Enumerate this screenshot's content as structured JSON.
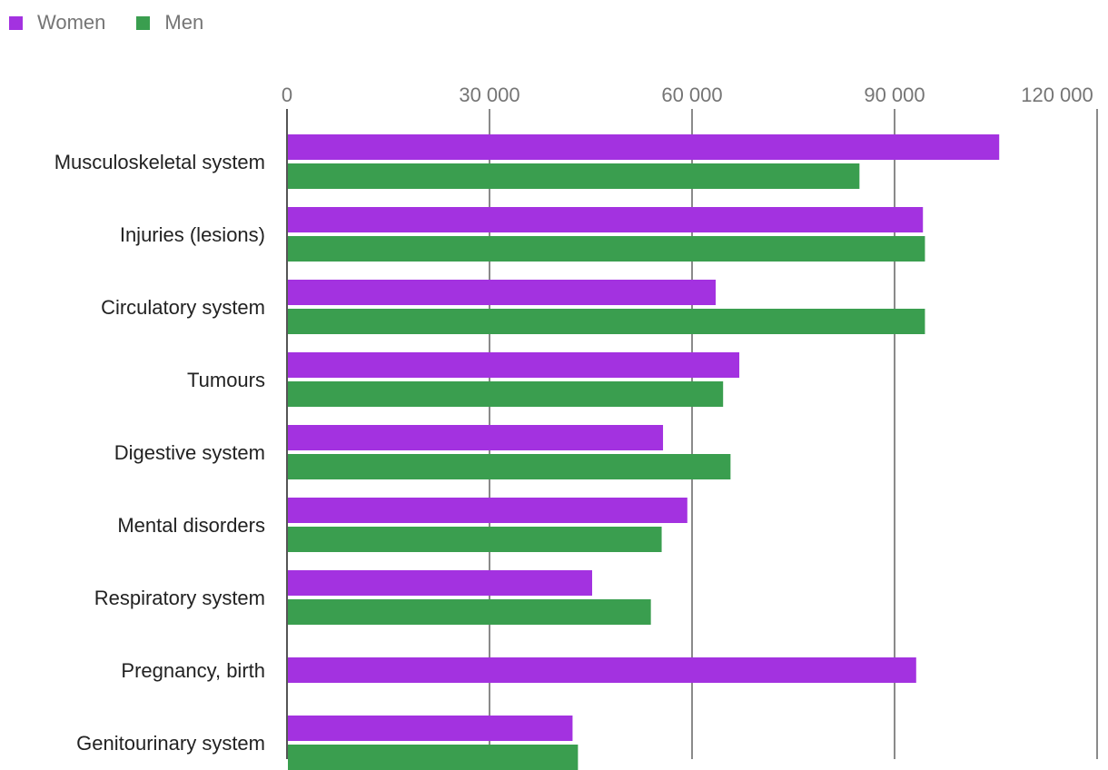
{
  "chart_data": {
    "type": "bar",
    "orientation": "horizontal",
    "title": "",
    "xlabel": "",
    "ylabel": "",
    "categories": [
      "Musculoskeletal system",
      "Injuries (lesions)",
      "Circulatory system",
      "Tumours",
      "Digestive system",
      "Mental disorders",
      "Respiratory system",
      "Pregnancy, birth",
      "Genitourinary system"
    ],
    "series": [
      {
        "name": "Women",
        "color": "#a332e0",
        "values": [
          105500,
          94200,
          63500,
          67000,
          55700,
          59300,
          45200,
          93200,
          42300
        ]
      },
      {
        "name": "Men",
        "color": "#3a9e4f",
        "values": [
          84800,
          94500,
          94500,
          64600,
          65700,
          55500,
          53900,
          null,
          43100
        ]
      }
    ],
    "xlim": [
      0,
      120000
    ],
    "xticks": [
      0,
      30000,
      60000,
      90000,
      120000
    ],
    "xtick_labels": [
      "0",
      "30 000",
      "60 000",
      "90 000",
      "120 000"
    ],
    "grid": true,
    "legend_position": "top-left"
  }
}
